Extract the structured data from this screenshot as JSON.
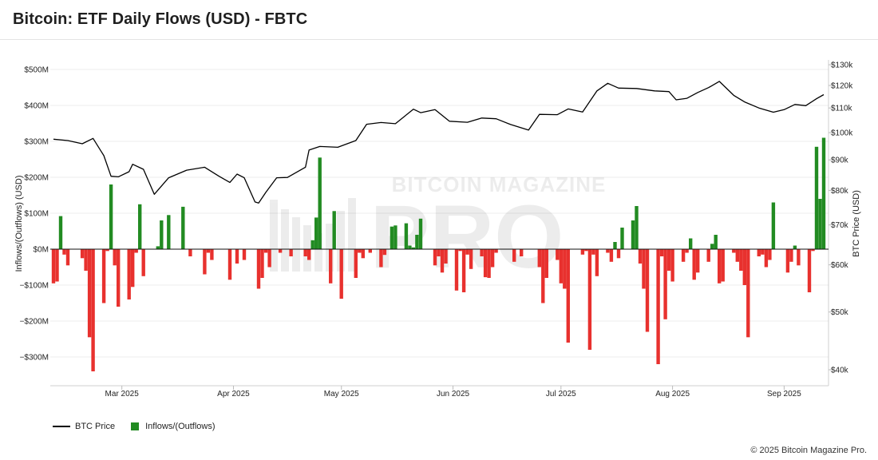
{
  "title": "Bitcoin: ETF Daily Flows (USD) - FBTC",
  "copyright": "© 2025 Bitcoin Magazine Pro.",
  "watermark": {
    "top": "BITCOIN MAGAZINE",
    "main": "PRO"
  },
  "colors": {
    "inflow": "#228b22",
    "outflow": "#e8312e",
    "price": "#000000",
    "grid": "#ececec"
  },
  "chart_data": {
    "type": "bar",
    "title": "Bitcoin: ETF Daily Flows (USD) - FBTC",
    "x_axis": {
      "ticks": [
        "Mar 2025",
        "Apr 2025",
        "May 2025",
        "Jun 2025",
        "Jul 2025",
        "Aug 2025",
        "Sep 2025"
      ],
      "tick_dates": [
        "2025-03-01",
        "2025-04-01",
        "2025-05-01",
        "2025-06-01",
        "2025-07-01",
        "2025-08-01",
        "2025-09-01"
      ],
      "range": [
        "2025-02-10",
        "2025-09-12"
      ]
    },
    "y_left": {
      "label": "Inflows/(Outflows) (USD)",
      "range": [
        -380,
        500
      ],
      "ticks": [
        500,
        400,
        300,
        200,
        100,
        0,
        -100,
        -200,
        -300
      ],
      "tick_labels": [
        "$500M",
        "$400M",
        "$300M",
        "$200M",
        "$100M",
        "$0M",
        "−$100M",
        "−$200M",
        "−$300M"
      ],
      "unit": "USD millions"
    },
    "y_right": {
      "label": "BTC Price (USD)",
      "scale": "log",
      "range": [
        38000,
        130000
      ],
      "ticks": [
        130000,
        120000,
        110000,
        100000,
        90000,
        80000,
        70000,
        60000,
        50000,
        40000
      ],
      "tick_labels": [
        "$130k",
        "$120k",
        "$110k",
        "$100k",
        "$90k",
        "$80k",
        "$70k",
        "$60k",
        "$50k",
        "$40k"
      ]
    },
    "grid": true,
    "legend": {
      "placement": "bottom-left",
      "entries": [
        "BTC Price",
        "Inflows/(Outflows)"
      ]
    },
    "series": [
      {
        "name": "Inflows/(Outflows)",
        "type": "bar",
        "dates": [
          "2025-02-10",
          "2025-02-11",
          "2025-02-12",
          "2025-02-13",
          "2025-02-14",
          "2025-02-18",
          "2025-02-19",
          "2025-02-20",
          "2025-02-21",
          "2025-02-24",
          "2025-02-25",
          "2025-02-26",
          "2025-02-27",
          "2025-02-28",
          "2025-03-03",
          "2025-03-04",
          "2025-03-05",
          "2025-03-06",
          "2025-03-07",
          "2025-03-10",
          "2025-03-11",
          "2025-03-12",
          "2025-03-13",
          "2025-03-14",
          "2025-03-17",
          "2025-03-18",
          "2025-03-19",
          "2025-03-20",
          "2025-03-21",
          "2025-03-24",
          "2025-03-25",
          "2025-03-26",
          "2025-03-27",
          "2025-03-28",
          "2025-03-31",
          "2025-04-01",
          "2025-04-02",
          "2025-04-03",
          "2025-04-04",
          "2025-04-07",
          "2025-04-08",
          "2025-04-09",
          "2025-04-10",
          "2025-04-11",
          "2025-04-14",
          "2025-04-15",
          "2025-04-16",
          "2025-04-17",
          "2025-04-21",
          "2025-04-22",
          "2025-04-23",
          "2025-04-24",
          "2025-04-25",
          "2025-04-28",
          "2025-04-29",
          "2025-04-30",
          "2025-05-01",
          "2025-05-02",
          "2025-05-05",
          "2025-05-06",
          "2025-05-07",
          "2025-05-08",
          "2025-05-09",
          "2025-05-12",
          "2025-05-13",
          "2025-05-14",
          "2025-05-15",
          "2025-05-16",
          "2025-05-19",
          "2025-05-20",
          "2025-05-21",
          "2025-05-22",
          "2025-05-23",
          "2025-05-27",
          "2025-05-28",
          "2025-05-29",
          "2025-05-30",
          "2025-06-02",
          "2025-06-03",
          "2025-06-04",
          "2025-06-05",
          "2025-06-06",
          "2025-06-09",
          "2025-06-10",
          "2025-06-11",
          "2025-06-12",
          "2025-06-13",
          "2025-06-16",
          "2025-06-17",
          "2025-06-18",
          "2025-06-20",
          "2025-06-23",
          "2025-06-24",
          "2025-06-25",
          "2025-06-26",
          "2025-06-27",
          "2025-06-30",
          "2025-07-01",
          "2025-07-02",
          "2025-07-03",
          "2025-07-07",
          "2025-07-08",
          "2025-07-09",
          "2025-07-10",
          "2025-07-11",
          "2025-07-14",
          "2025-07-15",
          "2025-07-16",
          "2025-07-17",
          "2025-07-18",
          "2025-07-21",
          "2025-07-22",
          "2025-07-23",
          "2025-07-24",
          "2025-07-25",
          "2025-07-28",
          "2025-07-29",
          "2025-07-30",
          "2025-07-31",
          "2025-08-01",
          "2025-08-04",
          "2025-08-05",
          "2025-08-06",
          "2025-08-07",
          "2025-08-08",
          "2025-08-11",
          "2025-08-12",
          "2025-08-13",
          "2025-08-14",
          "2025-08-15",
          "2025-08-18",
          "2025-08-19",
          "2025-08-20",
          "2025-08-21",
          "2025-08-22",
          "2025-08-25",
          "2025-08-26",
          "2025-08-27",
          "2025-08-28",
          "2025-08-29",
          "2025-09-02",
          "2025-09-03",
          "2025-09-04",
          "2025-09-05",
          "2025-09-08",
          "2025-09-09",
          "2025-09-10",
          "2025-09-11",
          "2025-09-12"
        ],
        "values": [
          -95,
          -90,
          92,
          -15,
          -45,
          -25,
          -60,
          -245,
          -340,
          -150,
          -5,
          180,
          -45,
          -160,
          -140,
          -105,
          -10,
          125,
          -75,
          0,
          8,
          80,
          0,
          95,
          0,
          118,
          0,
          -20,
          0,
          -70,
          -10,
          -30,
          0,
          0,
          -85,
          0,
          -40,
          0,
          -30,
          0,
          -110,
          -80,
          -10,
          -50,
          -10,
          0,
          0,
          -20,
          -20,
          -30,
          25,
          88,
          255,
          -95,
          106,
          0,
          -138,
          0,
          -80,
          -10,
          -25,
          0,
          -10,
          -50,
          -16,
          0,
          63,
          66,
          72,
          10,
          5,
          40,
          85,
          -45,
          -20,
          -65,
          -40,
          -115,
          -5,
          -120,
          -15,
          -55,
          -20,
          -78,
          -80,
          -50,
          -10,
          0,
          0,
          -35,
          -20,
          0,
          0,
          -50,
          -150,
          -80,
          -30,
          -95,
          -110,
          -260,
          -15,
          -5,
          -280,
          -15,
          -75,
          -10,
          -35,
          20,
          -25,
          60,
          80,
          120,
          -40,
          -110,
          -230,
          -320,
          -20,
          -195,
          -60,
          -90,
          -35,
          -10,
          30,
          -85,
          -65,
          -35,
          15,
          40,
          -95,
          -90,
          -10,
          -35,
          -60,
          -100,
          -245,
          -20,
          -15,
          -50,
          -30,
          130,
          -65,
          -35,
          10,
          -45,
          -120,
          -5,
          285,
          140,
          310
        ],
        "note": "values in USD millions"
      },
      {
        "name": "BTC Price",
        "type": "line",
        "dates": [
          "2025-02-10",
          "2025-02-14",
          "2025-02-18",
          "2025-02-21",
          "2025-02-24",
          "2025-02-26",
          "2025-02-28",
          "2025-03-03",
          "2025-03-04",
          "2025-03-07",
          "2025-03-10",
          "2025-03-14",
          "2025-03-19",
          "2025-03-24",
          "2025-03-28",
          "2025-03-31",
          "2025-04-02",
          "2025-04-04",
          "2025-04-07",
          "2025-04-08",
          "2025-04-10",
          "2025-04-13",
          "2025-04-16",
          "2025-04-21",
          "2025-04-22",
          "2025-04-25",
          "2025-04-30",
          "2025-05-05",
          "2025-05-08",
          "2025-05-12",
          "2025-05-16",
          "2025-05-21",
          "2025-05-23",
          "2025-05-27",
          "2025-05-31",
          "2025-06-05",
          "2025-06-09",
          "2025-06-13",
          "2025-06-17",
          "2025-06-22",
          "2025-06-25",
          "2025-06-30",
          "2025-07-03",
          "2025-07-07",
          "2025-07-11",
          "2025-07-14",
          "2025-07-17",
          "2025-07-22",
          "2025-07-27",
          "2025-07-31",
          "2025-08-02",
          "2025-08-05",
          "2025-08-08",
          "2025-08-11",
          "2025-08-14",
          "2025-08-18",
          "2025-08-21",
          "2025-08-25",
          "2025-08-29",
          "2025-09-01",
          "2025-09-04",
          "2025-09-07",
          "2025-09-10",
          "2025-09-12"
        ],
        "values": [
          97500,
          97000,
          95800,
          97800,
          91500,
          84500,
          84300,
          86000,
          88500,
          86800,
          78800,
          84000,
          86500,
          87500,
          84500,
          82500,
          85200,
          84000,
          76500,
          76200,
          79400,
          84000,
          84100,
          87500,
          93500,
          94800,
          94500,
          97000,
          103300,
          104000,
          103500,
          109500,
          108000,
          109300,
          104500,
          104100,
          105800,
          105500,
          103200,
          101000,
          107300,
          107200,
          109600,
          108300,
          117500,
          121000,
          118800,
          118600,
          117500,
          117200,
          113500,
          114200,
          116800,
          119000,
          121900,
          115500,
          112600,
          110000,
          108200,
          109300,
          111500,
          111000,
          114000,
          115800
        ]
      }
    ]
  }
}
